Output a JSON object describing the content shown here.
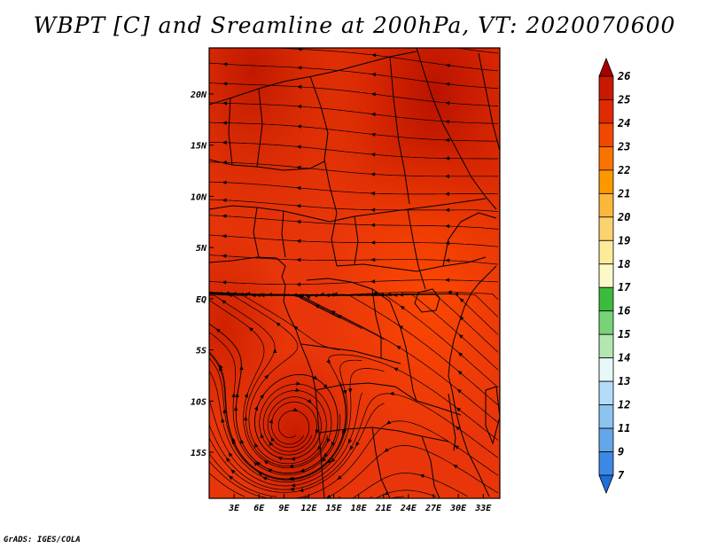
{
  "chart_data": {
    "type": "heatmap",
    "title": "WBPT [C] and Sreamline at 200hPa, VT: 2020070600",
    "x_ticks": [
      "3E",
      "6E",
      "9E",
      "12E",
      "15E",
      "18E",
      "21E",
      "24E",
      "27E",
      "30E",
      "33E"
    ],
    "y_ticks": [
      "20N",
      "15N",
      "10N",
      "5N",
      "EQ",
      "5S",
      "10S",
      "15S"
    ],
    "xlim_deg_east": [
      0,
      35
    ],
    "ylim_deg_north": [
      -19.5,
      24.5
    ],
    "field_range_c": [
      23,
      26
    ],
    "colorbar": {
      "levels": [
        "26",
        "25",
        "24",
        "23",
        "22",
        "21",
        "20",
        "19",
        "18",
        "17",
        "16",
        "15",
        "14",
        "13",
        "12",
        "11",
        "9",
        "7"
      ],
      "colors": [
        "#a50000",
        "#c81a00",
        "#e02a00",
        "#f04a00",
        "#fa7300",
        "#fc9800",
        "#fcb83c",
        "#fcd26e",
        "#fcec9a",
        "#fcf8c8",
        "#3cbc3c",
        "#78d278",
        "#b4e6b4",
        "#e6f8f8",
        "#b4dcf8",
        "#8cc4f0",
        "#64a6ea",
        "#3c8ae4",
        "#1e6ede"
      ]
    },
    "annotations": [
      "Higher values (24-26) in the northeast (Sahara/Red Sea area, ~20N, 20-33E)",
      "Anticyclonic streamline circulation near 14S, 9E"
    ]
  },
  "footer": {
    "credit": "GrADS: IGES/COLA"
  }
}
